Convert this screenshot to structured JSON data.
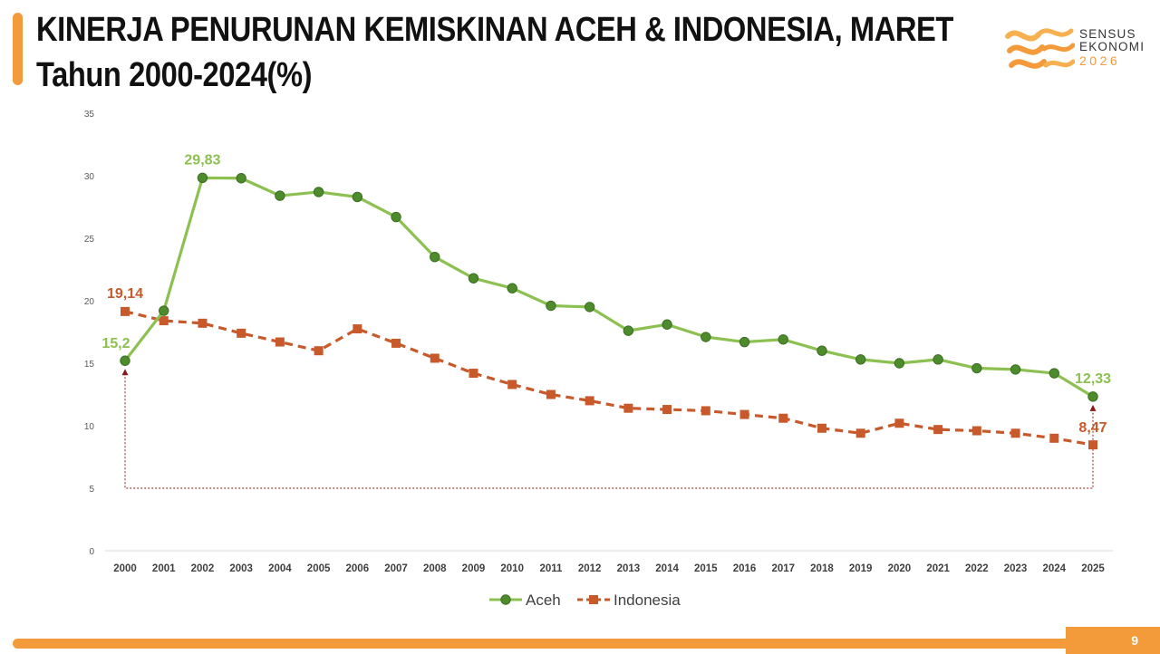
{
  "header": {
    "title_line1": "KINERJA PENURUNAN KEMISKINAN ACEH & INDONESIA, MARET",
    "title_line2": "Tahun 2000-2024(%)"
  },
  "logo": {
    "line1": "SENSUS",
    "line2": "EKONOMI",
    "line3": "2026"
  },
  "page_number": "9",
  "colors": {
    "accent": "#f39a3b",
    "aceh_line": "#8cc152",
    "aceh_marker": "#4e8b2c",
    "indonesia": "#c8592a"
  },
  "chart_data": {
    "type": "line",
    "x": [
      "2000",
      "2001",
      "2002",
      "2003",
      "2004",
      "2005",
      "2006",
      "2007",
      "2008",
      "2009",
      "2010",
      "2011",
      "2012",
      "2013",
      "2014",
      "2015",
      "2016",
      "2017",
      "2018",
      "2019",
      "2020",
      "2021",
      "2022",
      "2023",
      "2024",
      "2025"
    ],
    "ylim": [
      0,
      35
    ],
    "yticks": [
      "0",
      "5",
      "10",
      "15",
      "20",
      "25",
      "30",
      "35"
    ],
    "grid": false,
    "legend_position": "bottom-center",
    "series": [
      {
        "name": "Aceh",
        "marker": "circle",
        "line_style": "solid",
        "values": [
          15.2,
          19.2,
          29.83,
          29.8,
          28.4,
          28.7,
          28.3,
          26.7,
          23.5,
          21.8,
          21.0,
          19.6,
          19.5,
          17.6,
          18.1,
          17.1,
          16.7,
          16.9,
          16.0,
          15.3,
          15.0,
          15.3,
          14.6,
          14.5,
          14.2,
          12.33
        ]
      },
      {
        "name": "Indonesia",
        "marker": "square",
        "line_style": "dashed",
        "values": [
          19.14,
          18.4,
          18.2,
          17.4,
          16.7,
          16.0,
          17.75,
          16.6,
          15.4,
          14.2,
          13.3,
          12.5,
          12.0,
          11.4,
          11.3,
          11.2,
          10.9,
          10.6,
          9.8,
          9.4,
          10.2,
          9.7,
          9.6,
          9.4,
          9.0,
          8.47
        ]
      }
    ],
    "annotations": [
      {
        "series": "Aceh",
        "index": 0,
        "text": "15,2"
      },
      {
        "series": "Aceh",
        "index": 2,
        "text": "29,83"
      },
      {
        "series": "Aceh",
        "index": 25,
        "text": "12,33"
      },
      {
        "series": "Indonesia",
        "index": 0,
        "text": "19,14"
      },
      {
        "series": "Indonesia",
        "index": 25,
        "text": "8,47"
      }
    ],
    "bracket": {
      "from_index": 0,
      "to_index": 25,
      "baseline_value": 5
    }
  }
}
